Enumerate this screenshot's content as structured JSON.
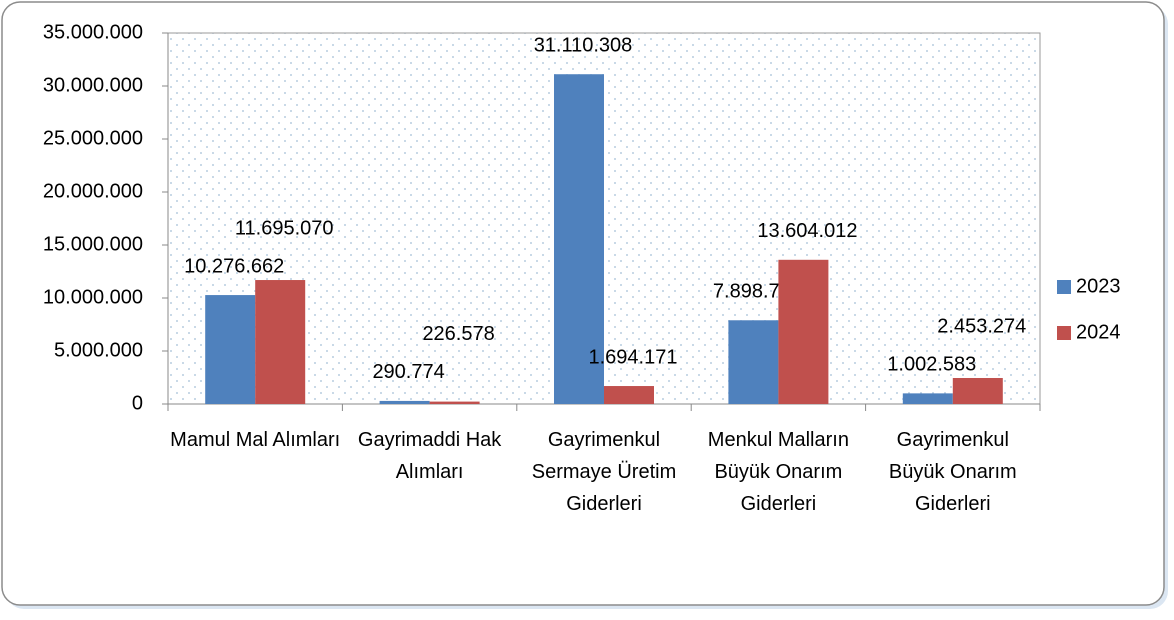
{
  "chart_data": {
    "type": "bar",
    "categories": [
      "Mamul Mal Alımları",
      "Gayrimaddi Hak Alımları",
      "Gayrimenkul Sermaye Üretim Giderleri",
      "Menkul Malların Büyük Onarım Giderleri",
      "Gayrimenkul Büyük Onarım Giderleri"
    ],
    "series": [
      {
        "name": "2023",
        "color": "#4f81bd",
        "values": [
          10276662,
          290774,
          31110308,
          7898726,
          1002583
        ],
        "value_labels": [
          "10.276.662",
          "290.774",
          "31.110.308",
          "7.898.726",
          "1.002.583"
        ]
      },
      {
        "name": "2024",
        "color": "#c0504d",
        "values": [
          11695070,
          226578,
          1694171,
          13604012,
          2453274
        ],
        "value_labels": [
          "11.695.070",
          "226.578",
          "1.694.171",
          "13.604.012",
          "2.453.274"
        ]
      }
    ],
    "ylim": [
      0,
      35000000
    ],
    "yticks": [
      {
        "value": 0,
        "label": "0"
      },
      {
        "value": 5000000,
        "label": "5.000.000"
      },
      {
        "value": 10000000,
        "label": "10.000.000"
      },
      {
        "value": 15000000,
        "label": "15.000.000"
      },
      {
        "value": 20000000,
        "label": "20.000.000"
      },
      {
        "value": 25000000,
        "label": "25.000.000"
      },
      {
        "value": 30000000,
        "label": "30.000.000"
      },
      {
        "value": 35000000,
        "label": "35.000.000"
      }
    ],
    "legend": "right"
  }
}
